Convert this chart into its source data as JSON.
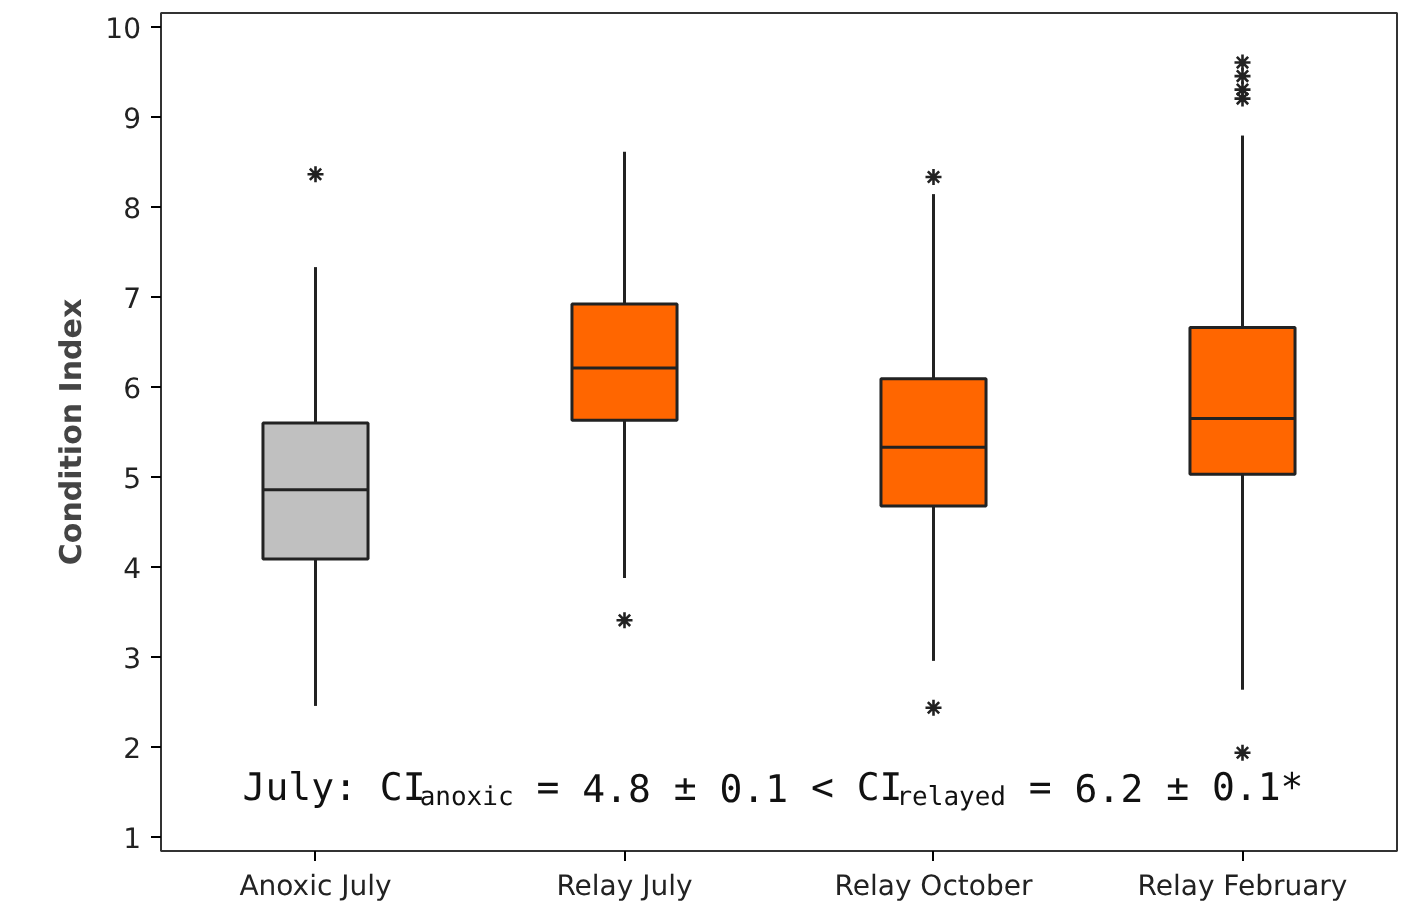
{
  "chart_data": {
    "type": "box",
    "ylabel": "Condition Index",
    "categories": [
      "Anoxic July",
      "Relay July",
      "Relay October",
      "Relay February"
    ],
    "colors": [
      "#c0c0c0",
      "#ff6600",
      "#ff6600",
      "#ff6600"
    ],
    "boxes": [
      {
        "low": 2.46,
        "q1": 4.09,
        "median": 4.86,
        "q3": 5.6,
        "high": 7.33,
        "outliers": [
          8.36
        ]
      },
      {
        "low": 3.88,
        "q1": 5.63,
        "median": 6.21,
        "q3": 6.92,
        "high": 8.61,
        "outliers": [
          3.41
        ]
      },
      {
        "low": 2.96,
        "q1": 4.68,
        "median": 5.33,
        "q3": 6.09,
        "high": 8.14,
        "outliers": [
          8.33,
          2.44
        ]
      },
      {
        "low": 2.64,
        "q1": 5.03,
        "median": 5.65,
        "q3": 6.66,
        "high": 8.79,
        "outliers": [
          9.6,
          9.45,
          9.3,
          9.2,
          1.94
        ]
      }
    ],
    "ylim": [
      0.85,
      10.15
    ],
    "yticks": [
      1,
      2,
      3,
      4,
      5,
      6,
      7,
      8,
      9,
      10
    ],
    "grid": false,
    "annotations": [
      "July: CI$_{anoxic}$ = 4.8 ± 0.1 < CI$_{relayed}$ = 6.2 ± 0.1*"
    ]
  }
}
